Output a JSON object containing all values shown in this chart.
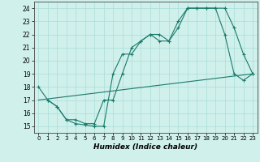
{
  "xlabel": "Humidex (Indice chaleur)",
  "xlim": [
    -0.5,
    23.5
  ],
  "ylim": [
    14.5,
    24.5
  ],
  "xticks": [
    0,
    1,
    2,
    3,
    4,
    5,
    6,
    7,
    8,
    9,
    10,
    11,
    12,
    13,
    14,
    15,
    16,
    17,
    18,
    19,
    20,
    21,
    22,
    23
  ],
  "yticks": [
    15,
    16,
    17,
    18,
    19,
    20,
    21,
    22,
    23,
    24
  ],
  "line_color": "#1a7a6a",
  "bg_color": "#d0f0ec",
  "grid_color": "#aaddd8",
  "line1_x": [
    0,
    1,
    2,
    3,
    4,
    5,
    6,
    7,
    8,
    9,
    10,
    11,
    12,
    13,
    14,
    15,
    16,
    17,
    18,
    19,
    20,
    21,
    22,
    23
  ],
  "line1_y": [
    18,
    17,
    16.5,
    15.5,
    15.2,
    15.1,
    15.0,
    15.0,
    19.0,
    20.5,
    20.5,
    21.5,
    22.0,
    22.0,
    21.5,
    23.0,
    24.0,
    24.0,
    24.0,
    24.0,
    24.0,
    22.5,
    20.5,
    19.0
  ],
  "line2_x": [
    0,
    23
  ],
  "line2_y": [
    17.0,
    19.0
  ],
  "line3_x": [
    1,
    2,
    3,
    4,
    5,
    6,
    7,
    8,
    9,
    10,
    11,
    12,
    13,
    14,
    15,
    16,
    17,
    18,
    19,
    20,
    21,
    22,
    23
  ],
  "line3_y": [
    17.0,
    16.5,
    15.5,
    15.5,
    15.2,
    15.2,
    17.0,
    17.0,
    19.0,
    21.0,
    21.5,
    22.0,
    21.5,
    21.5,
    22.5,
    24.0,
    24.0,
    24.0,
    24.0,
    22.0,
    19.0,
    18.5,
    19.0
  ]
}
